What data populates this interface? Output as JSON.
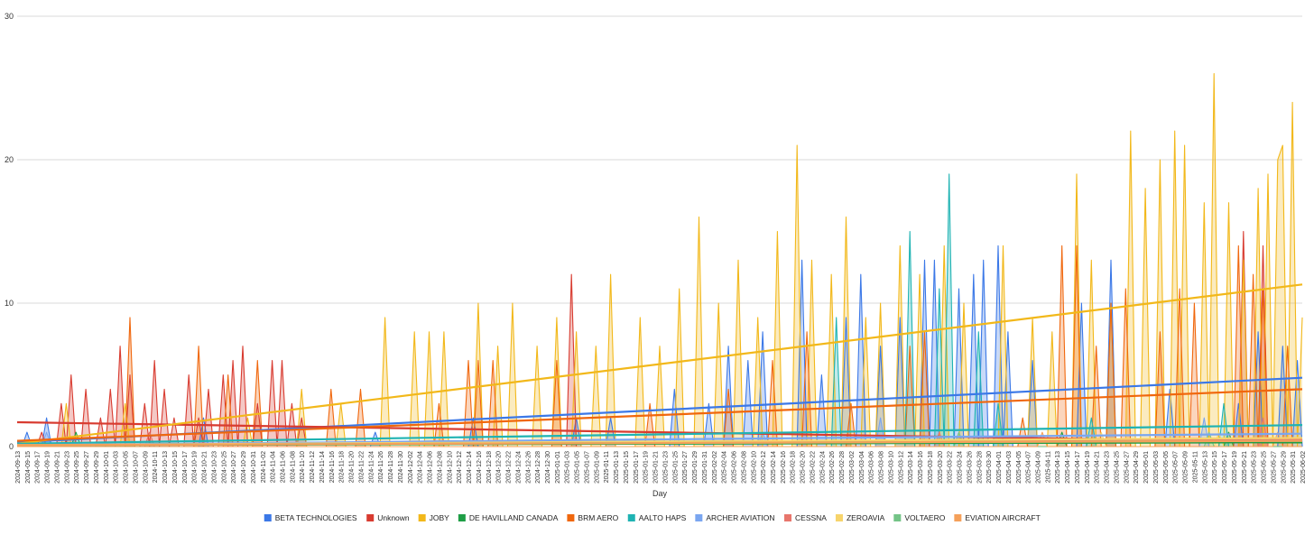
{
  "chart_data": {
    "type": "area",
    "title": "",
    "xlabel": "Day",
    "ylabel": "",
    "ylim": [
      0,
      30
    ],
    "yticks": [
      0,
      10,
      20,
      30
    ],
    "x_start": "2024-09-13",
    "x_end": "2025-06-02",
    "x_tick_step_days": 2,
    "grid": true,
    "legend_position": "bottom",
    "series": [
      {
        "name": "BETA TECHNOLOGIES",
        "color": "#3b78e7",
        "trend": [
          0.3,
          4.8
        ],
        "points": [
          [
            "2024-09-15",
            1
          ],
          [
            "2024-09-19",
            2
          ],
          [
            "2024-10-21",
            2
          ],
          [
            "2024-11-25",
            1
          ],
          [
            "2024-12-15",
            2
          ],
          [
            "2025-01-05",
            2
          ],
          [
            "2025-01-12",
            2
          ],
          [
            "2025-01-25",
            4
          ],
          [
            "2025-02-01",
            3
          ],
          [
            "2025-02-05",
            7
          ],
          [
            "2025-02-09",
            6
          ],
          [
            "2025-02-12",
            8
          ],
          [
            "2025-02-20",
            13
          ],
          [
            "2025-02-24",
            5
          ],
          [
            "2025-03-01",
            9
          ],
          [
            "2025-03-04",
            12
          ],
          [
            "2025-03-08",
            7
          ],
          [
            "2025-03-12",
            9
          ],
          [
            "2025-03-17",
            13
          ],
          [
            "2025-03-19",
            13
          ],
          [
            "2025-03-24",
            11
          ],
          [
            "2025-03-27",
            12
          ],
          [
            "2025-03-29",
            13
          ],
          [
            "2025-04-01",
            14
          ],
          [
            "2025-04-03",
            8
          ],
          [
            "2025-04-08",
            6
          ],
          [
            "2025-04-18",
            10
          ],
          [
            "2025-04-24",
            13
          ],
          [
            "2025-05-06",
            4
          ],
          [
            "2025-05-20",
            3
          ],
          [
            "2025-05-24",
            8
          ],
          [
            "2025-05-29",
            7
          ],
          [
            "2025-06-01",
            6
          ]
        ]
      },
      {
        "name": "Unknown",
        "color": "#d83b30",
        "trend": [
          1.7,
          0.3
        ],
        "points": [
          [
            "2024-09-18",
            1
          ],
          [
            "2024-09-22",
            3
          ],
          [
            "2024-09-24",
            5
          ],
          [
            "2024-09-27",
            4
          ],
          [
            "2024-09-30",
            2
          ],
          [
            "2024-10-02",
            4
          ],
          [
            "2024-10-04",
            7
          ],
          [
            "2024-10-06",
            5
          ],
          [
            "2024-10-09",
            3
          ],
          [
            "2024-10-11",
            6
          ],
          [
            "2024-10-13",
            4
          ],
          [
            "2024-10-15",
            2
          ],
          [
            "2024-10-18",
            5
          ],
          [
            "2024-10-20",
            2
          ],
          [
            "2024-10-22",
            4
          ],
          [
            "2024-10-25",
            5
          ],
          [
            "2024-10-27",
            6
          ],
          [
            "2024-10-29",
            7
          ],
          [
            "2024-11-01",
            3
          ],
          [
            "2024-11-04",
            6
          ],
          [
            "2024-11-06",
            6
          ],
          [
            "2024-11-08",
            3
          ],
          [
            "2024-11-10",
            2
          ],
          [
            "2025-01-04",
            12
          ],
          [
            "2025-05-21",
            15
          ],
          [
            "2025-05-25",
            14
          ]
        ]
      },
      {
        "name": "JOBY",
        "color": "#f2b81a",
        "trend": [
          0.2,
          11.3
        ],
        "points": [
          [
            "2024-09-23",
            3
          ],
          [
            "2024-10-05",
            3
          ],
          [
            "2024-10-30",
            2
          ],
          [
            "2024-11-10",
            4
          ],
          [
            "2024-11-18",
            3
          ],
          [
            "2024-11-27",
            9
          ],
          [
            "2024-12-03",
            8
          ],
          [
            "2024-12-06",
            8
          ],
          [
            "2024-12-09",
            8
          ],
          [
            "2024-12-16",
            10
          ],
          [
            "2024-12-20",
            7
          ],
          [
            "2024-12-23",
            10
          ],
          [
            "2024-12-28",
            7
          ],
          [
            "2025-01-01",
            9
          ],
          [
            "2025-01-05",
            8
          ],
          [
            "2025-01-09",
            7
          ],
          [
            "2025-01-12",
            12
          ],
          [
            "2025-01-18",
            9
          ],
          [
            "2025-01-22",
            7
          ],
          [
            "2025-01-26",
            11
          ],
          [
            "2025-01-30",
            16
          ],
          [
            "2025-02-03",
            10
          ],
          [
            "2025-02-07",
            13
          ],
          [
            "2025-02-11",
            9
          ],
          [
            "2025-02-15",
            15
          ],
          [
            "2025-02-19",
            21
          ],
          [
            "2025-02-22",
            13
          ],
          [
            "2025-02-26",
            12
          ],
          [
            "2025-03-01",
            16
          ],
          [
            "2025-03-05",
            9
          ],
          [
            "2025-03-08",
            10
          ],
          [
            "2025-03-12",
            14
          ],
          [
            "2025-03-16",
            12
          ],
          [
            "2025-03-21",
            14
          ],
          [
            "2025-03-25",
            10
          ],
          [
            "2025-04-02",
            14
          ],
          [
            "2025-04-08",
            9
          ],
          [
            "2025-04-12",
            8
          ],
          [
            "2025-04-17",
            19
          ],
          [
            "2025-04-20",
            13
          ],
          [
            "2025-04-24",
            10
          ],
          [
            "2025-04-28",
            22
          ],
          [
            "2025-05-01",
            18
          ],
          [
            "2025-05-04",
            20
          ],
          [
            "2025-05-07",
            22
          ],
          [
            "2025-05-09",
            21
          ],
          [
            "2025-05-13",
            17
          ],
          [
            "2025-05-15",
            26
          ],
          [
            "2025-05-18",
            17
          ],
          [
            "2025-05-21",
            13
          ],
          [
            "2025-05-24",
            18
          ],
          [
            "2025-05-26",
            19
          ],
          [
            "2025-05-28",
            20
          ],
          [
            "2025-05-29",
            21
          ],
          [
            "2025-05-31",
            24
          ],
          [
            "2025-06-02",
            9
          ]
        ]
      },
      {
        "name": "DE HAVILLAND CANADA",
        "color": "#1e9e46",
        "trend": [
          0.1,
          0.3
        ],
        "points": [
          [
            "2024-09-25",
            1
          ],
          [
            "2025-04-14",
            1
          ],
          [
            "2025-05-18",
            1
          ]
        ]
      },
      {
        "name": "BRM AERO",
        "color": "#f0670d",
        "trend": [
          0.4,
          4.0
        ],
        "points": [
          [
            "2024-10-06",
            9
          ],
          [
            "2024-10-20",
            7
          ],
          [
            "2024-10-26",
            5
          ],
          [
            "2024-11-01",
            6
          ],
          [
            "2024-11-16",
            4
          ],
          [
            "2024-11-22",
            4
          ],
          [
            "2024-12-08",
            3
          ],
          [
            "2024-12-14",
            6
          ],
          [
            "2024-12-16",
            6
          ],
          [
            "2024-12-19",
            6
          ],
          [
            "2025-01-01",
            6
          ],
          [
            "2025-01-20",
            3
          ],
          [
            "2025-02-05",
            4
          ],
          [
            "2025-02-14",
            6
          ],
          [
            "2025-02-21",
            8
          ],
          [
            "2025-03-02",
            3
          ],
          [
            "2025-03-14",
            7
          ],
          [
            "2025-03-17",
            8
          ],
          [
            "2025-04-06",
            2
          ],
          [
            "2025-04-14",
            14
          ],
          [
            "2025-04-17",
            14
          ],
          [
            "2025-04-21",
            7
          ],
          [
            "2025-04-24",
            10
          ],
          [
            "2025-04-27",
            11
          ],
          [
            "2025-05-04",
            8
          ],
          [
            "2025-05-08",
            11
          ],
          [
            "2025-05-11",
            10
          ],
          [
            "2025-05-20",
            14
          ],
          [
            "2025-05-23",
            12
          ],
          [
            "2025-05-25",
            11
          ],
          [
            "2025-05-30",
            7
          ]
        ]
      },
      {
        "name": "AALTO HAPS",
        "color": "#1fb3b3",
        "trend": [
          0.2,
          1.5
        ],
        "points": [
          [
            "2025-02-27",
            9
          ],
          [
            "2025-03-14",
            15
          ],
          [
            "2025-03-20",
            11
          ],
          [
            "2025-03-22",
            19
          ],
          [
            "2025-03-28",
            8
          ],
          [
            "2025-04-01",
            3
          ],
          [
            "2025-04-20",
            2
          ],
          [
            "2025-05-17",
            3
          ]
        ]
      },
      {
        "name": "ARCHER AVIATION",
        "color": "#7aa6f0",
        "trend": [
          0.1,
          0.9
        ],
        "points": [
          [
            "2024-09-19",
            1
          ],
          [
            "2025-02-12",
            1
          ],
          [
            "2025-03-08",
            2
          ],
          [
            "2025-05-13",
            2
          ]
        ]
      },
      {
        "name": "CESSNA",
        "color": "#e8766c",
        "trend": [
          0.1,
          0.5
        ],
        "points": [
          [
            "2024-10-10",
            1
          ],
          [
            "2025-03-20",
            1
          ],
          [
            "2025-05-25",
            2
          ]
        ]
      },
      {
        "name": "ZEROAVIA",
        "color": "#f7d46b",
        "trend": [
          0.1,
          0.6
        ],
        "points": [
          [
            "2025-04-22",
            1
          ],
          [
            "2025-05-16",
            1
          ]
        ]
      },
      {
        "name": "VOLTAERO",
        "color": "#74c487",
        "trend": [
          0.1,
          0.4
        ],
        "points": [
          [
            "2025-03-24",
            1
          ],
          [
            "2025-05-14",
            1
          ]
        ]
      },
      {
        "name": "EVIATION AIRCRAFT",
        "color": "#f5a05a",
        "trend": [
          0.1,
          0.4
        ],
        "points": [
          [
            "2025-04-10",
            1
          ],
          [
            "2025-05-28",
            1
          ]
        ]
      }
    ]
  }
}
